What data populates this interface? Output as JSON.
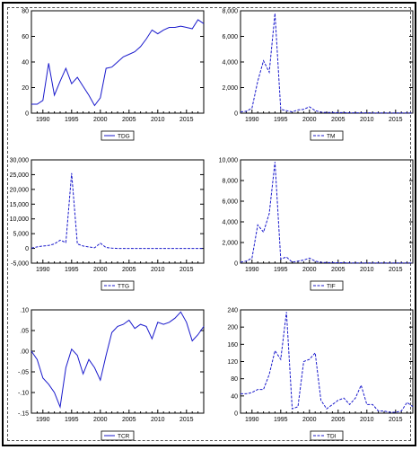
{
  "chart_data": [
    {
      "type": "line",
      "series": [
        {
          "name": "TDG",
          "color": "#1a1acc",
          "dashed": false,
          "x": [
            1988,
            1989,
            1990,
            1991,
            1992,
            1993,
            1994,
            1995,
            1996,
            1997,
            1998,
            1999,
            2000,
            2001,
            2002,
            2003,
            2004,
            2005,
            2006,
            2007,
            2008,
            2009,
            2010,
            2011,
            2012,
            2013,
            2014,
            2015,
            2016,
            2017,
            2018
          ],
          "values": [
            7,
            7,
            10,
            39,
            14,
            25,
            35,
            23,
            28,
            21,
            14,
            6,
            12,
            35,
            36,
            40,
            44,
            46,
            48,
            52,
            58,
            65,
            62,
            65,
            67,
            67,
            68,
            67,
            66,
            73,
            70
          ]
        }
      ],
      "xlim": [
        1988,
        2018
      ],
      "xticks": [
        1990,
        1995,
        2000,
        2005,
        2010,
        2015
      ],
      "ylim": [
        0,
        80
      ],
      "yticks": [
        0,
        20,
        40,
        60,
        80
      ],
      "ytick_labels": [
        "0",
        "20",
        "40",
        "60",
        "80"
      ]
    },
    {
      "type": "line",
      "series": [
        {
          "name": "TM",
          "color": "#1a1acc",
          "dashed": true,
          "x": [
            1988,
            1989,
            1990,
            1991,
            1992,
            1993,
            1994,
            1995,
            1996,
            1997,
            1998,
            1999,
            2000,
            2001,
            2002,
            2003,
            2004,
            2005,
            2006,
            2007,
            2008,
            2009,
            2010,
            2011,
            2012,
            2013,
            2014,
            2015,
            2016,
            2017,
            2018
          ],
          "values": [
            100,
            150,
            400,
            2500,
            4100,
            3200,
            7800,
            300,
            200,
            100,
            250,
            300,
            500,
            200,
            80,
            50,
            50,
            40,
            40,
            30,
            30,
            30,
            30,
            20,
            20,
            20,
            20,
            20,
            20,
            20,
            20
          ]
        }
      ],
      "xlim": [
        1988,
        2018
      ],
      "xticks": [
        1990,
        1995,
        2000,
        2005,
        2010,
        2015
      ],
      "ylim": [
        0,
        8000
      ],
      "yticks": [
        0,
        2000,
        4000,
        6000,
        8000
      ],
      "ytick_labels": [
        "0",
        "2,000",
        "4,000",
        "6,000",
        "8,000"
      ]
    },
    {
      "type": "line",
      "series": [
        {
          "name": "TTG",
          "color": "#1a1acc",
          "dashed": true,
          "x": [
            1988,
            1989,
            1990,
            1991,
            1992,
            1993,
            1994,
            1995,
            1996,
            1997,
            1998,
            1999,
            2000,
            2001,
            2002,
            2003,
            2004,
            2005,
            2006,
            2007,
            2008,
            2009,
            2010,
            2011,
            2012,
            2013,
            2014,
            2015,
            2016,
            2017,
            2018
          ],
          "values": [
            100,
            500,
            800,
            1000,
            1500,
            2800,
            2000,
            25500,
            1500,
            800,
            500,
            200,
            1800,
            300,
            100,
            0,
            0,
            0,
            0,
            0,
            0,
            0,
            0,
            0,
            0,
            0,
            0,
            0,
            0,
            0,
            0
          ]
        }
      ],
      "xlim": [
        1988,
        2018
      ],
      "xticks": [
        1990,
        1995,
        2000,
        2005,
        2010,
        2015
      ],
      "ylim": [
        -5000,
        30000
      ],
      "yticks": [
        -5000,
        0,
        5000,
        10000,
        15000,
        20000,
        25000,
        30000
      ],
      "ytick_labels": [
        "-5,000",
        "0",
        "5,000",
        "10,000",
        "15,000",
        "20,000",
        "25,000",
        "30,000"
      ]
    },
    {
      "type": "line",
      "series": [
        {
          "name": "TIF",
          "color": "#1a1acc",
          "dashed": true,
          "x": [
            1988,
            1989,
            1990,
            1991,
            1992,
            1993,
            1994,
            1995,
            1996,
            1997,
            1998,
            1999,
            2000,
            2001,
            2002,
            2003,
            2004,
            2005,
            2006,
            2007,
            2008,
            2009,
            2010,
            2011,
            2012,
            2013,
            2014,
            2015,
            2016,
            2017,
            2018
          ],
          "values": [
            100,
            200,
            500,
            3700,
            3000,
            4800,
            9800,
            400,
            600,
            100,
            200,
            300,
            500,
            200,
            80,
            50,
            50,
            40,
            40,
            30,
            30,
            30,
            30,
            20,
            20,
            20,
            20,
            20,
            20,
            20,
            20
          ]
        }
      ],
      "xlim": [
        1988,
        2018
      ],
      "xticks": [
        1990,
        1995,
        2000,
        2005,
        2010,
        2015
      ],
      "ylim": [
        0,
        10000
      ],
      "yticks": [
        0,
        2000,
        4000,
        6000,
        8000,
        10000
      ],
      "ytick_labels": [
        "0",
        "2,000",
        "4,000",
        "6,000",
        "8,000",
        "10,000"
      ]
    },
    {
      "type": "line",
      "series": [
        {
          "name": "TCR",
          "color": "#1a1acc",
          "dashed": false,
          "x": [
            1988,
            1989,
            1990,
            1991,
            1992,
            1993,
            1994,
            1995,
            1996,
            1997,
            1998,
            1999,
            2000,
            2001,
            2002,
            2003,
            2004,
            2005,
            2006,
            2007,
            2008,
            2009,
            2010,
            2011,
            2012,
            2013,
            2014,
            2015,
            2016,
            2017,
            2018
          ],
          "values": [
            0,
            -0.02,
            -0.065,
            -0.08,
            -0.1,
            -0.135,
            -0.04,
            0.005,
            -0.01,
            -0.055,
            -0.02,
            -0.04,
            -0.07,
            -0.01,
            0.045,
            0.06,
            0.065,
            0.075,
            0.055,
            0.065,
            0.06,
            0.03,
            0.07,
            0.065,
            0.07,
            0.08,
            0.095,
            0.07,
            0.025,
            0.04,
            0.06
          ]
        }
      ],
      "xlim": [
        1988,
        2018
      ],
      "xticks": [
        1990,
        1995,
        2000,
        2005,
        2010,
        2015
      ],
      "ylim": [
        -0.15,
        0.1
      ],
      "yticks": [
        -0.15,
        -0.1,
        -0.05,
        0,
        0.05,
        0.1
      ],
      "ytick_labels": [
        "-.15",
        "-.10",
        "-.05",
        ".00",
        ".05",
        ".10"
      ]
    },
    {
      "type": "line",
      "series": [
        {
          "name": "TDI",
          "color": "#1a1acc",
          "dashed": true,
          "x": [
            1988,
            1989,
            1990,
            1991,
            1992,
            1993,
            1994,
            1995,
            1996,
            1997,
            1998,
            1999,
            2000,
            2001,
            2002,
            2003,
            2004,
            2005,
            2006,
            2007,
            2008,
            2009,
            2010,
            2011,
            2012,
            2013,
            2014,
            2015,
            2016,
            2017,
            2018
          ],
          "values": [
            45,
            45,
            48,
            55,
            55,
            90,
            145,
            125,
            235,
            10,
            15,
            120,
            125,
            140,
            30,
            10,
            20,
            30,
            35,
            20,
            35,
            65,
            20,
            20,
            5,
            5,
            2,
            2,
            5,
            25,
            15
          ]
        }
      ],
      "xlim": [
        1988,
        2018
      ],
      "xticks": [
        1990,
        1995,
        2000,
        2005,
        2010,
        2015
      ],
      "ylim": [
        0,
        240
      ],
      "yticks": [
        0,
        40,
        80,
        120,
        160,
        200,
        240
      ],
      "ytick_labels": [
        "0",
        "40",
        "80",
        "120",
        "160",
        "200",
        "240"
      ]
    }
  ]
}
